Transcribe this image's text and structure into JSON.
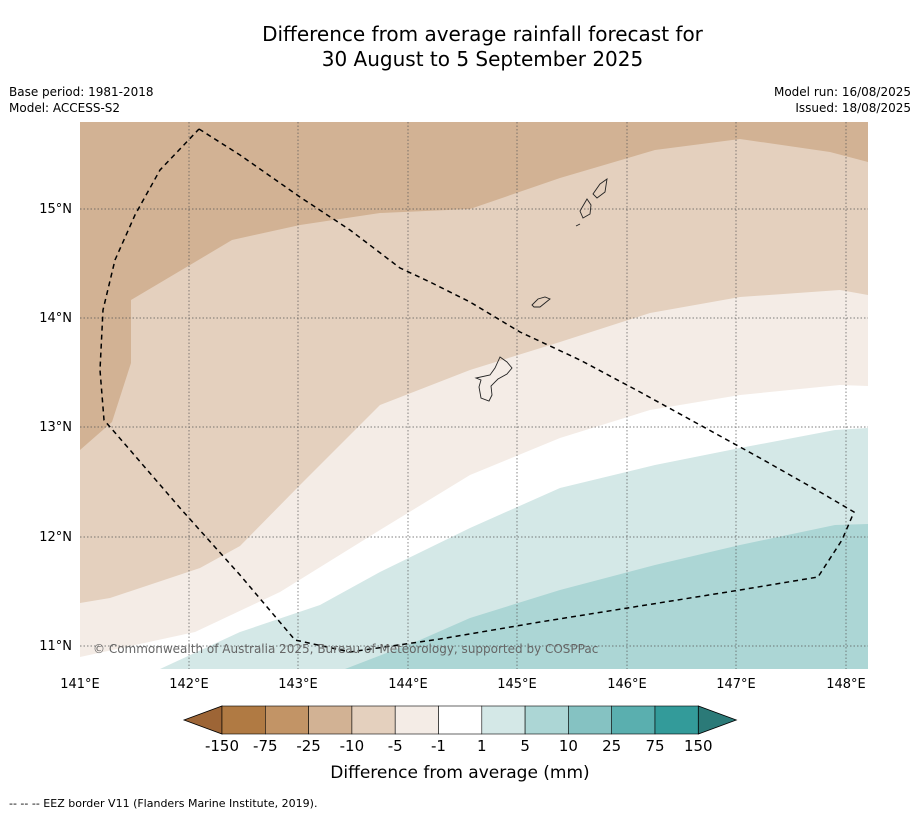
{
  "title_line1": "Difference from average rainfall forecast for",
  "title_line2": "30 August to 5 September 2025",
  "meta": {
    "base_period": "Base period: 1981-2018",
    "model": "Model: ACCESS-S2",
    "model_run": "Model run: 16/08/2025",
    "issued": "Issued: 18/08/2025"
  },
  "map": {
    "lon_ticks": [
      "141°E",
      "142°E",
      "143°E",
      "144°E",
      "145°E",
      "146°E",
      "147°E",
      "148°E"
    ],
    "lat_ticks": [
      "15°N",
      "14°N",
      "13°N",
      "12°N",
      "11°N"
    ],
    "copyright": "© Commonwealth of Australia 2025, Bureau of Meteorology, supported by COSPPac",
    "colors": {
      "class_m25_m10": "#d2b294",
      "class_m10_m5": "#e4d0be",
      "class_m5_m1": "#f4ece6",
      "class_m1_p1": "#ffffff",
      "class_p1_p5": "#d4e8e7",
      "class_p5_p10": "#acd6d5"
    }
  },
  "colorbar": {
    "title": "Difference from average (mm)",
    "labels": [
      "-150",
      "-75",
      "-25",
      "-10",
      "-5",
      "-1",
      "1",
      "5",
      "10",
      "25",
      "75",
      "150"
    ],
    "colors": [
      "#9d6536",
      "#b07a43",
      "#c29466",
      "#d2b294",
      "#e4d0be",
      "#f4ece6",
      "#ffffff",
      "#d4e8e7",
      "#acd6d5",
      "#85c2c2",
      "#5aafaf",
      "#339b9a",
      "#2b7a78"
    ]
  },
  "footer": "-- -- -- EEZ border V11 (Flanders Marine Institute, 2019)."
}
